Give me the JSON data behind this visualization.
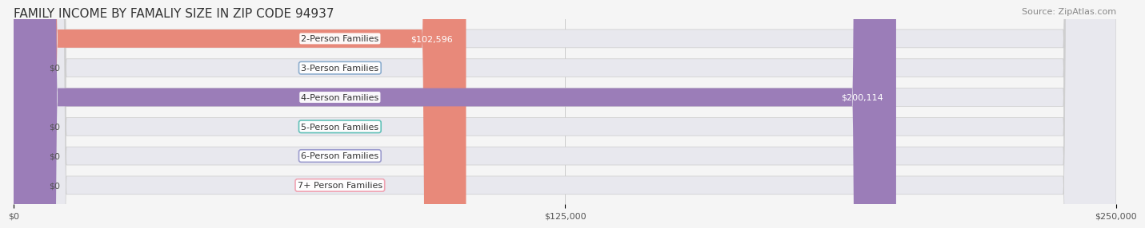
{
  "title": "FAMILY INCOME BY FAMALIY SIZE IN ZIP CODE 94937",
  "source": "Source: ZipAtlas.com",
  "categories": [
    "2-Person Families",
    "3-Person Families",
    "4-Person Families",
    "5-Person Families",
    "6-Person Families",
    "7+ Person Families"
  ],
  "values": [
    102596,
    0,
    200114,
    0,
    0,
    0
  ],
  "bar_colors": [
    "#E8897A",
    "#88AACC",
    "#9B7DB8",
    "#5BBFB5",
    "#9999CC",
    "#F0A0B0"
  ],
  "label_colors": [
    "#E8897A",
    "#88AACC",
    "#9B7DB8",
    "#5BBFB5",
    "#9999CC",
    "#F0A0B0"
  ],
  "value_labels": [
    "$102,596",
    "$0",
    "$200,114",
    "$0",
    "$0",
    "$0"
  ],
  "xlim": [
    0,
    250000
  ],
  "xtick_labels": [
    "$0",
    "$125,000",
    "$250,000"
  ],
  "xtick_values": [
    0,
    125000,
    250000
  ],
  "title_fontsize": 11,
  "source_fontsize": 8,
  "label_fontsize": 8,
  "value_fontsize": 8,
  "background_color": "#F5F5F5",
  "bar_background_color": "#E8E8EE",
  "bar_height": 0.62
}
